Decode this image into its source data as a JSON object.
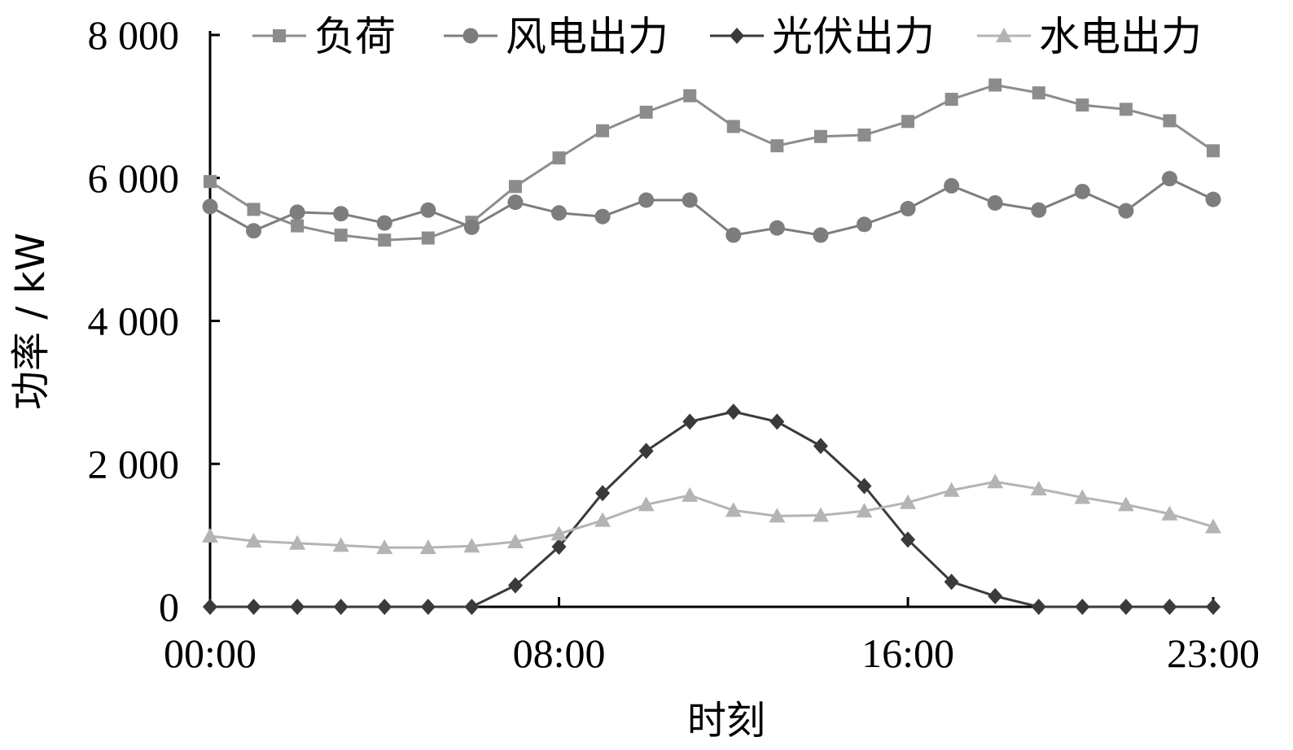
{
  "chart_data": {
    "type": "line",
    "xlabel": "时刻",
    "ylabel": "功率 / kW",
    "x_ticks": [
      "00:00",
      "08:00",
      "16:00",
      "23:00"
    ],
    "x_tick_hours": [
      0,
      8,
      16,
      23
    ],
    "y_ticks": [
      "0",
      "2 000",
      "4 000",
      "6 000",
      "8 000"
    ],
    "y_tick_values": [
      0,
      2000,
      4000,
      6000,
      8000
    ],
    "ylim": [
      0,
      8000
    ],
    "xlim": [
      0,
      23
    ],
    "grid": false,
    "legend_position": "top",
    "x": [
      0,
      1,
      2,
      3,
      4,
      5,
      6,
      7,
      8,
      9,
      10,
      11,
      12,
      13,
      14,
      15,
      16,
      17,
      18,
      19,
      20,
      21,
      22,
      23
    ],
    "series": [
      {
        "name": "负荷",
        "marker": "square",
        "color": "#8c8c8c",
        "values": [
          5950,
          5560,
          5330,
          5200,
          5130,
          5160,
          5380,
          5880,
          6280,
          6660,
          6920,
          7150,
          6720,
          6450,
          6580,
          6600,
          6790,
          7100,
          7300,
          7190,
          7020,
          6960,
          6800,
          6380
        ]
      },
      {
        "name": "风电出力",
        "marker": "circle",
        "color": "#7d7d7d",
        "values": [
          5600,
          5260,
          5520,
          5500,
          5370,
          5550,
          5310,
          5660,
          5510,
          5460,
          5690,
          5690,
          5200,
          5300,
          5200,
          5350,
          5570,
          5890,
          5650,
          5550,
          5810,
          5540,
          5990,
          5700
        ]
      },
      {
        "name": "光伏出力",
        "marker": "diamond",
        "color": "#3a3a3a",
        "values": [
          0,
          0,
          0,
          0,
          0,
          0,
          0,
          300,
          840,
          1590,
          2180,
          2590,
          2730,
          2590,
          2250,
          1690,
          940,
          350,
          150,
          0,
          0,
          0,
          0,
          0
        ]
      },
      {
        "name": "水电出力",
        "marker": "triangle",
        "color": "#b4b4b4",
        "values": [
          990,
          920,
          890,
          860,
          830,
          830,
          850,
          910,
          1020,
          1210,
          1430,
          1560,
          1350,
          1270,
          1280,
          1340,
          1460,
          1630,
          1750,
          1650,
          1530,
          1430,
          1300,
          1120
        ]
      }
    ]
  }
}
